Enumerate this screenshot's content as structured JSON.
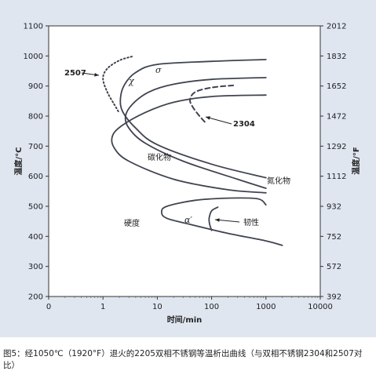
{
  "caption": "图5：经1050℃（1920°F）退火的2205双相不锈钢等温析出曲线（与双相不锈钢2304和2507对比）",
  "chart_data": {
    "type": "line",
    "xlabel": "时间/min",
    "ylabel": "温度/°C",
    "ylabel_right": "温度/°F",
    "x_scale": "log",
    "xlim": [
      0.1,
      10000
    ],
    "ylim": [
      200,
      1100
    ],
    "x_ticks": [
      "0",
      "1",
      "10",
      "100",
      "1000",
      "10000"
    ],
    "y_ticks": [
      "200",
      "300",
      "400",
      "500",
      "600",
      "700",
      "800",
      "900",
      "1000",
      "1100"
    ],
    "y_right_ticks": [
      "392",
      "572",
      "752",
      "932",
      "1112",
      "1292",
      "1472",
      "1652",
      "1832",
      "2012"
    ],
    "grid": false,
    "series": [
      {
        "name": "σ",
        "style": "solid",
        "points": [
          [
            1000,
            988
          ],
          [
            100,
            982
          ],
          [
            10,
            972
          ],
          [
            4,
            945
          ],
          [
            2.5,
            905
          ],
          [
            2.1,
            860
          ],
          [
            2.3,
            815
          ],
          [
            4,
            760
          ],
          [
            10,
            705
          ],
          [
            100,
            640
          ],
          [
            1000,
            595
          ]
        ]
      },
      {
        "name": "χ",
        "style": "solid",
        "points": [
          [
            1000,
            928
          ],
          [
            100,
            922
          ],
          [
            20,
            906
          ],
          [
            7,
            880
          ],
          [
            3.5,
            840
          ],
          [
            2.6,
            800
          ],
          [
            3,
            760
          ],
          [
            6,
            710
          ],
          [
            30,
            650
          ],
          [
            300,
            590
          ],
          [
            1000,
            560
          ]
        ]
      },
      {
        "name": "碳化物",
        "style": "solid",
        "points": [
          [
            1000,
            870
          ],
          [
            100,
            865
          ],
          [
            20,
            846
          ],
          [
            6,
            812
          ],
          [
            2.3,
            770
          ],
          [
            1.5,
            735
          ],
          [
            1.6,
            695
          ],
          [
            3,
            650
          ],
          [
            20,
            590
          ],
          [
            200,
            555
          ],
          [
            1000,
            545
          ]
        ]
      },
      {
        "name": "",
        "style": "solid",
        "points": [
          [
            1000,
            505
          ],
          [
            700,
            525
          ],
          [
            200,
            527
          ],
          [
            50,
            520
          ],
          [
            15,
            500
          ],
          [
            12,
            480
          ],
          [
            15,
            460
          ],
          [
            40,
            440
          ],
          [
            200,
            410
          ],
          [
            1000,
            385
          ],
          [
            2000,
            370
          ]
        ]
      },
      {
        "name": "2507",
        "style": "dotted",
        "points": [
          [
            3.4,
            998
          ],
          [
            2,
            985
          ],
          [
            1.2,
            958
          ],
          [
            1,
            925
          ],
          [
            1.2,
            880
          ],
          [
            1.6,
            840
          ],
          [
            2,
            810
          ]
        ]
      },
      {
        "name": "2304",
        "style": "dashed",
        "points": [
          [
            250,
            902
          ],
          [
            100,
            895
          ],
          [
            50,
            880
          ],
          [
            40,
            855
          ],
          [
            45,
            830
          ],
          [
            60,
            800
          ],
          [
            80,
            775
          ]
        ]
      },
      {
        "name": "韧性",
        "style": "solid",
        "points": [
          [
            130,
            497
          ],
          [
            100,
            485
          ],
          [
            90,
            460
          ],
          [
            92,
            440
          ],
          [
            100,
            420
          ]
        ]
      }
    ],
    "annotations": [
      "2507",
      "σ",
      "χ",
      "2304",
      "碳化物",
      "氮化物",
      "硬度",
      "α′",
      "韧性"
    ]
  }
}
